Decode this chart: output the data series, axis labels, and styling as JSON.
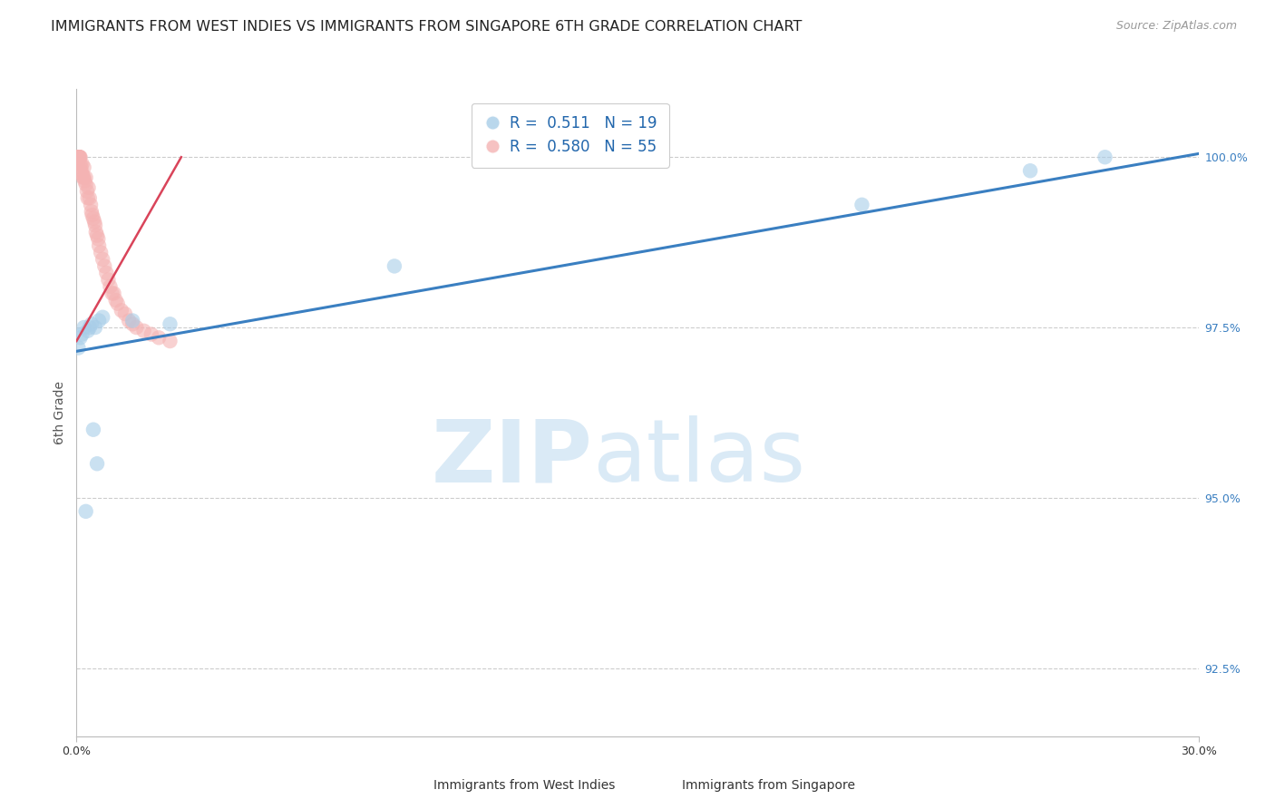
{
  "title": "IMMIGRANTS FROM WEST INDIES VS IMMIGRANTS FROM SINGAPORE 6TH GRADE CORRELATION CHART",
  "source": "Source: ZipAtlas.com",
  "ylabel": "6th Grade",
  "ylabel_right_ticks": [
    92.5,
    95.0,
    97.5,
    100.0
  ],
  "ylabel_right_labels": [
    "92.5%",
    "95.0%",
    "97.5%",
    "100.0%"
  ],
  "xmin": 0.0,
  "xmax": 30.0,
  "ymin": 91.5,
  "ymax": 101.0,
  "blue_R": 0.511,
  "blue_N": 19,
  "pink_R": 0.58,
  "pink_N": 55,
  "blue_scatter_x": [
    0.05,
    0.1,
    0.15,
    0.2,
    0.3,
    0.35,
    0.4,
    0.5,
    0.6,
    0.7,
    1.5,
    2.5,
    8.5,
    21.0,
    25.5,
    27.5,
    0.25,
    0.45,
    0.55
  ],
  "blue_scatter_y": [
    97.2,
    97.35,
    97.4,
    97.5,
    97.45,
    97.5,
    97.55,
    97.5,
    97.6,
    97.65,
    97.6,
    97.55,
    98.4,
    99.3,
    99.8,
    100.0,
    94.8,
    96.0,
    95.5
  ],
  "pink_scatter_x": [
    0.02,
    0.03,
    0.04,
    0.04,
    0.05,
    0.05,
    0.06,
    0.07,
    0.08,
    0.09,
    0.1,
    0.1,
    0.12,
    0.13,
    0.15,
    0.15,
    0.18,
    0.2,
    0.2,
    0.22,
    0.25,
    0.25,
    0.28,
    0.3,
    0.32,
    0.35,
    0.38,
    0.4,
    0.42,
    0.45,
    0.48,
    0.5,
    0.52,
    0.55,
    0.58,
    0.6,
    0.65,
    0.7,
    0.75,
    0.8,
    0.85,
    0.9,
    0.95,
    1.0,
    1.05,
    1.1,
    1.2,
    1.3,
    1.4,
    1.5,
    1.6,
    1.8,
    2.0,
    2.2,
    2.5
  ],
  "pink_scatter_y": [
    99.9,
    100.0,
    100.0,
    100.0,
    100.0,
    100.0,
    100.0,
    100.0,
    100.0,
    100.0,
    100.0,
    99.9,
    99.85,
    99.8,
    99.9,
    99.75,
    99.7,
    99.85,
    99.7,
    99.65,
    99.6,
    99.7,
    99.5,
    99.4,
    99.55,
    99.4,
    99.3,
    99.2,
    99.15,
    99.1,
    99.05,
    99.0,
    98.9,
    98.85,
    98.8,
    98.7,
    98.6,
    98.5,
    98.4,
    98.3,
    98.2,
    98.1,
    98.0,
    98.0,
    97.9,
    97.85,
    97.75,
    97.7,
    97.6,
    97.55,
    97.5,
    97.45,
    97.4,
    97.35,
    97.3
  ],
  "blue_line_x": [
    0.0,
    30.0
  ],
  "blue_line_y": [
    97.15,
    100.05
  ],
  "pink_line_x": [
    0.0,
    2.8
  ],
  "pink_line_y": [
    97.3,
    100.0
  ],
  "blue_color": "#a8cde8",
  "pink_color": "#f4b3b3",
  "blue_line_color": "#3a7fc1",
  "pink_line_color": "#d9445a",
  "legend_label_blue": "Immigrants from West Indies",
  "legend_label_pink": "Immigrants from Singapore",
  "title_fontsize": 11.5,
  "source_fontsize": 9,
  "axis_label_fontsize": 10,
  "tick_fontsize": 9,
  "legend_fontsize": 12
}
